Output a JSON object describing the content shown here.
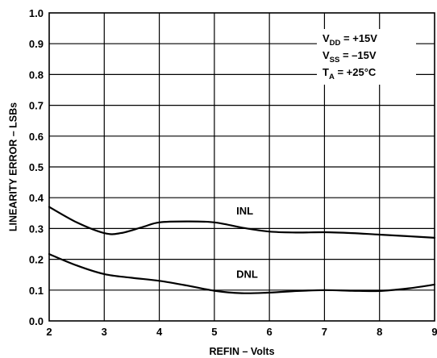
{
  "chart_data": {
    "type": "line",
    "xlabel": "REFIN – Volts",
    "ylabel": "LINEARITY ERROR – LSBs",
    "xlim": [
      2,
      9
    ],
    "ylim": [
      0.0,
      1.0
    ],
    "x_ticks": [
      "2",
      "3",
      "4",
      "5",
      "6",
      "7",
      "8",
      "9"
    ],
    "y_ticks": [
      "0.0",
      "0.1",
      "0.2",
      "0.3",
      "0.4",
      "0.5",
      "0.6",
      "0.7",
      "0.8",
      "0.9",
      "1.0"
    ],
    "grid": true,
    "series": [
      {
        "name": "INL",
        "color": "#000000",
        "x": [
          2.0,
          2.5,
          3.0,
          3.3,
          3.7,
          4.0,
          4.5,
          5.0,
          5.5,
          6.0,
          6.5,
          7.0,
          7.5,
          8.0,
          8.5,
          9.0
        ],
        "y": [
          0.37,
          0.32,
          0.285,
          0.285,
          0.305,
          0.32,
          0.323,
          0.32,
          0.303,
          0.29,
          0.287,
          0.288,
          0.285,
          0.28,
          0.275,
          0.27
        ]
      },
      {
        "name": "DNL",
        "color": "#000000",
        "x": [
          2.0,
          2.5,
          3.0,
          3.5,
          4.0,
          4.5,
          5.0,
          5.5,
          6.0,
          6.5,
          7.0,
          7.5,
          8.0,
          8.5,
          9.0
        ],
        "y": [
          0.217,
          0.18,
          0.152,
          0.14,
          0.13,
          0.115,
          0.098,
          0.09,
          0.092,
          0.097,
          0.1,
          0.098,
          0.097,
          0.105,
          0.118
        ]
      }
    ],
    "annotations": [
      {
        "main": "V",
        "sub": "DD",
        "rest": " = +15V"
      },
      {
        "main": "V",
        "sub": "SS",
        "rest": " = –15V"
      },
      {
        "main": "T",
        "sub": "A",
        "rest": " = +25°C"
      }
    ]
  }
}
